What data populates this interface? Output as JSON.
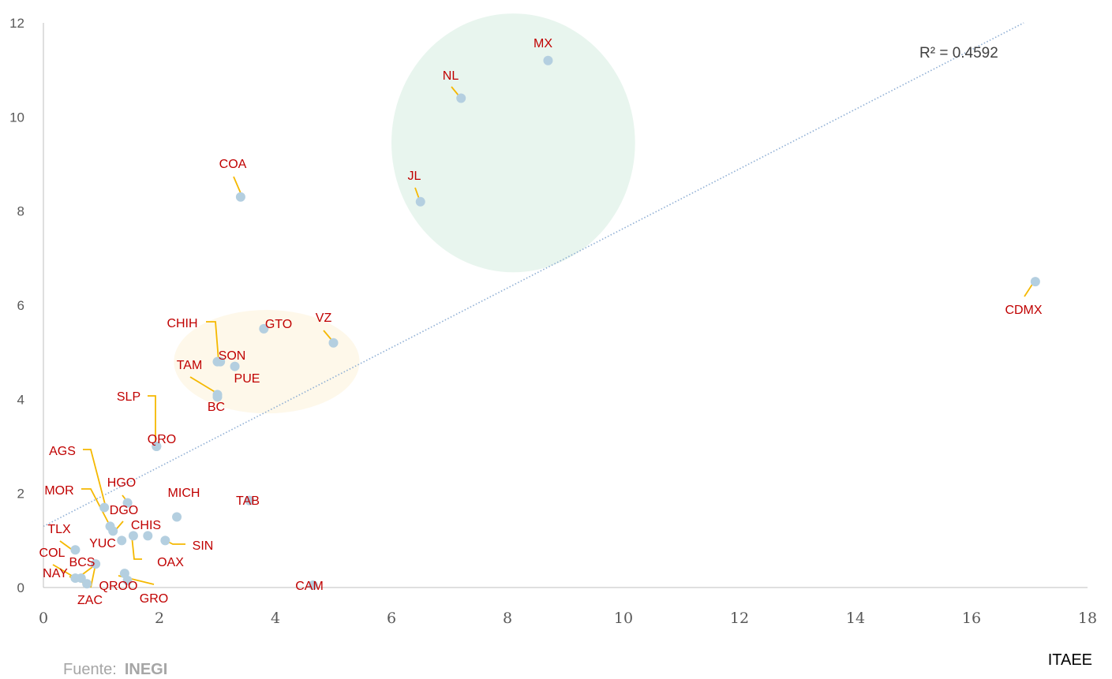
{
  "chart_data": {
    "type": "scatter",
    "xlim": [
      0,
      18
    ],
    "ylim": [
      0,
      12
    ],
    "x_ticks": [
      0,
      2,
      4,
      6,
      8,
      10,
      12,
      14,
      16,
      18
    ],
    "y_ticks": [
      0,
      2,
      4,
      6,
      8,
      10,
      12
    ],
    "xlabel": "ITAEE",
    "ylabel": "",
    "grid": false,
    "point_color": "#b4cfe0",
    "label_color": "#c00000",
    "leader_color": "#f5b800",
    "trendline": {
      "type": "linear",
      "from": [
        0,
        1.3
      ],
      "to": [
        16.9,
        12
      ],
      "color": "#8eaed4",
      "r2_text": "R² = 0.4592"
    },
    "highlights": [
      {
        "shape": "ellipse",
        "cx": 8.1,
        "cy": 9.45,
        "rx": 2.1,
        "ry": 2.75,
        "color": "#e8f5ee"
      },
      {
        "shape": "ellipse",
        "cx": 3.85,
        "cy": 4.8,
        "rx": 1.6,
        "ry": 1.1,
        "color": "#fef8ea"
      }
    ],
    "points": [
      {
        "label": "MX",
        "x": 8.7,
        "y": 11.2
      },
      {
        "label": "NL",
        "x": 7.2,
        "y": 10.4
      },
      {
        "label": "JL",
        "x": 6.5,
        "y": 8.2
      },
      {
        "label": "COA",
        "x": 3.4,
        "y": 8.3
      },
      {
        "label": "CDMX",
        "x": 17.1,
        "y": 6.5
      },
      {
        "label": "GTO",
        "x": 3.8,
        "y": 5.5
      },
      {
        "label": "VZ",
        "x": 5.0,
        "y": 5.2
      },
      {
        "label": "CHIH",
        "x": 3.0,
        "y": 4.8
      },
      {
        "label": "SON",
        "x": 3.05,
        "y": 4.8
      },
      {
        "label": "PUE",
        "x": 3.3,
        "y": 4.7
      },
      {
        "label": "TAM",
        "x": 3.0,
        "y": 4.1
      },
      {
        "label": "BC",
        "x": 3.0,
        "y": 4.05
      },
      {
        "label": "SLP",
        "x": 1.95,
        "y": 3.0
      },
      {
        "label": "QRO",
        "x": 1.95,
        "y": 3.0
      },
      {
        "label": "AGS",
        "x": 1.05,
        "y": 1.7
      },
      {
        "label": "HGO",
        "x": 1.45,
        "y": 1.8
      },
      {
        "label": "MOR",
        "x": 1.15,
        "y": 1.3
      },
      {
        "label": "DGO",
        "x": 1.2,
        "y": 1.2
      },
      {
        "label": "MICH",
        "x": 2.3,
        "y": 1.5
      },
      {
        "label": "TAB",
        "x": 3.55,
        "y": 1.85
      },
      {
        "label": "CHIS",
        "x": 1.55,
        "y": 1.1
      },
      {
        "label": "YUC",
        "x": 1.35,
        "y": 1.0
      },
      {
        "label": "OAX",
        "x": 1.8,
        "y": 1.1
      },
      {
        "label": "SIN",
        "x": 2.1,
        "y": 1.0
      },
      {
        "label": "TLX",
        "x": 0.55,
        "y": 0.8
      },
      {
        "label": "BCS",
        "x": 0.9,
        "y": 0.5
      },
      {
        "label": "COL",
        "x": 0.55,
        "y": 0.2
      },
      {
        "label": "NAY",
        "x": 0.65,
        "y": 0.2
      },
      {
        "label": "ZAC",
        "x": 0.75,
        "y": 0.08
      },
      {
        "label": "QROO",
        "x": 1.4,
        "y": 0.3
      },
      {
        "label": "GRO",
        "x": 1.45,
        "y": 0.15
      },
      {
        "label": "CAM",
        "x": 4.65,
        "y": 0.05
      }
    ]
  },
  "source": {
    "prefix": "Fuente:",
    "name": "INEGI"
  }
}
